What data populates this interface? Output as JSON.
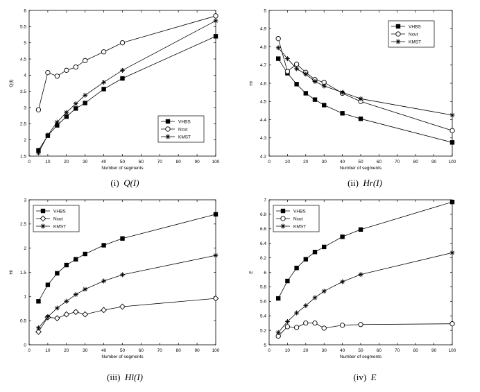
{
  "chart_data": [
    {
      "type": "line",
      "caption_prefix": "(i)",
      "caption_math": "Q(I)",
      "xlabel": "Number of segments",
      "ylabel": "Q(I)",
      "x": [
        5,
        10,
        15,
        20,
        25,
        30,
        40,
        50,
        100
      ],
      "xlim": [
        0,
        100
      ],
      "ylim": [
        1.5,
        6
      ],
      "xticks": [
        0,
        10,
        20,
        30,
        40,
        50,
        60,
        70,
        80,
        90,
        100
      ],
      "yticks": [
        1.5,
        2,
        2.5,
        3,
        3.5,
        4,
        4.5,
        5,
        5.5,
        6
      ],
      "legend_position": "bottom-right",
      "series": [
        {
          "name": "VHBS",
          "marker": "square",
          "values": [
            1.68,
            2.13,
            2.45,
            2.72,
            2.97,
            3.14,
            3.57,
            3.9,
            5.2
          ]
        },
        {
          "name": "Ncut",
          "marker": "circle",
          "values": [
            2.93,
            4.08,
            3.97,
            4.15,
            4.25,
            4.45,
            4.72,
            5.0,
            5.83
          ]
        },
        {
          "name": "KMST",
          "marker": "star",
          "values": [
            1.6,
            2.15,
            2.55,
            2.85,
            3.12,
            3.38,
            3.78,
            4.15,
            5.68
          ]
        }
      ]
    },
    {
      "type": "line",
      "caption_prefix": "(ii)",
      "caption_math": "Hr(I)",
      "xlabel": "Number of segments",
      "ylabel": "Hr",
      "x": [
        5,
        10,
        15,
        20,
        25,
        30,
        40,
        50,
        100
      ],
      "xlim": [
        0,
        100
      ],
      "ylim": [
        4.2,
        5
      ],
      "xticks": [
        0,
        10,
        20,
        30,
        40,
        50,
        60,
        70,
        80,
        90,
        100
      ],
      "yticks": [
        4.2,
        4.3,
        4.4,
        4.5,
        4.6,
        4.7,
        4.8,
        4.9,
        5
      ],
      "legend_position": "top-right",
      "series": [
        {
          "name": "VHBS",
          "marker": "square",
          "values": [
            4.735,
            4.655,
            4.595,
            4.545,
            4.51,
            4.48,
            4.435,
            4.405,
            4.275
          ]
        },
        {
          "name": "Ncut",
          "marker": "circle",
          "values": [
            4.845,
            4.665,
            4.705,
            4.66,
            4.62,
            4.605,
            4.545,
            4.5,
            4.34
          ]
        },
        {
          "name": "KMST",
          "marker": "star",
          "values": [
            4.795,
            4.735,
            4.68,
            4.65,
            4.61,
            4.585,
            4.55,
            4.515,
            4.425
          ]
        }
      ]
    },
    {
      "type": "line",
      "caption_prefix": "(iii)",
      "caption_math": "Hl(I)",
      "xlabel": "Number of segments",
      "ylabel": "Hl",
      "x": [
        5,
        10,
        15,
        20,
        25,
        30,
        40,
        50,
        100
      ],
      "xlim": [
        0,
        100
      ],
      "ylim": [
        0,
        3
      ],
      "xticks": [
        0,
        10,
        20,
        30,
        40,
        50,
        60,
        70,
        80,
        90,
        100
      ],
      "yticks": [
        0,
        0.5,
        1,
        1.5,
        2,
        2.5,
        3
      ],
      "legend_position": "top-left",
      "series": [
        {
          "name": "VHBS",
          "marker": "square",
          "values": [
            0.9,
            1.24,
            1.48,
            1.65,
            1.77,
            1.88,
            2.06,
            2.2,
            2.7
          ]
        },
        {
          "name": "Ncut",
          "marker": "diamond",
          "values": [
            0.27,
            0.57,
            0.55,
            0.63,
            0.68,
            0.63,
            0.72,
            0.79,
            0.96
          ]
        },
        {
          "name": "KMST",
          "marker": "star",
          "values": [
            0.35,
            0.58,
            0.76,
            0.9,
            1.04,
            1.15,
            1.32,
            1.45,
            1.85
          ]
        }
      ]
    },
    {
      "type": "line",
      "caption_prefix": "(iv)",
      "caption_math": "E",
      "xlabel": "Number of segments",
      "ylabel": "E",
      "x": [
        5,
        10,
        15,
        20,
        25,
        30,
        40,
        50,
        100
      ],
      "xlim": [
        0,
        100
      ],
      "ylim": [
        5,
        7
      ],
      "xticks": [
        0,
        10,
        20,
        30,
        40,
        50,
        60,
        70,
        80,
        90,
        100
      ],
      "yticks": [
        5,
        5.2,
        5.4,
        5.6,
        5.8,
        6,
        6.2,
        6.4,
        6.6,
        6.8,
        7
      ],
      "legend_position": "top-left",
      "series": [
        {
          "name": "VHBS",
          "marker": "square",
          "values": [
            5.64,
            5.88,
            6.06,
            6.18,
            6.28,
            6.35,
            6.49,
            6.59,
            6.97
          ]
        },
        {
          "name": "Ncut",
          "marker": "circle",
          "values": [
            5.12,
            5.25,
            5.24,
            5.3,
            5.3,
            5.23,
            5.27,
            5.28,
            5.29
          ]
        },
        {
          "name": "KMST",
          "marker": "star",
          "values": [
            5.17,
            5.32,
            5.44,
            5.54,
            5.65,
            5.74,
            5.87,
            5.97,
            6.27
          ]
        }
      ]
    }
  ]
}
